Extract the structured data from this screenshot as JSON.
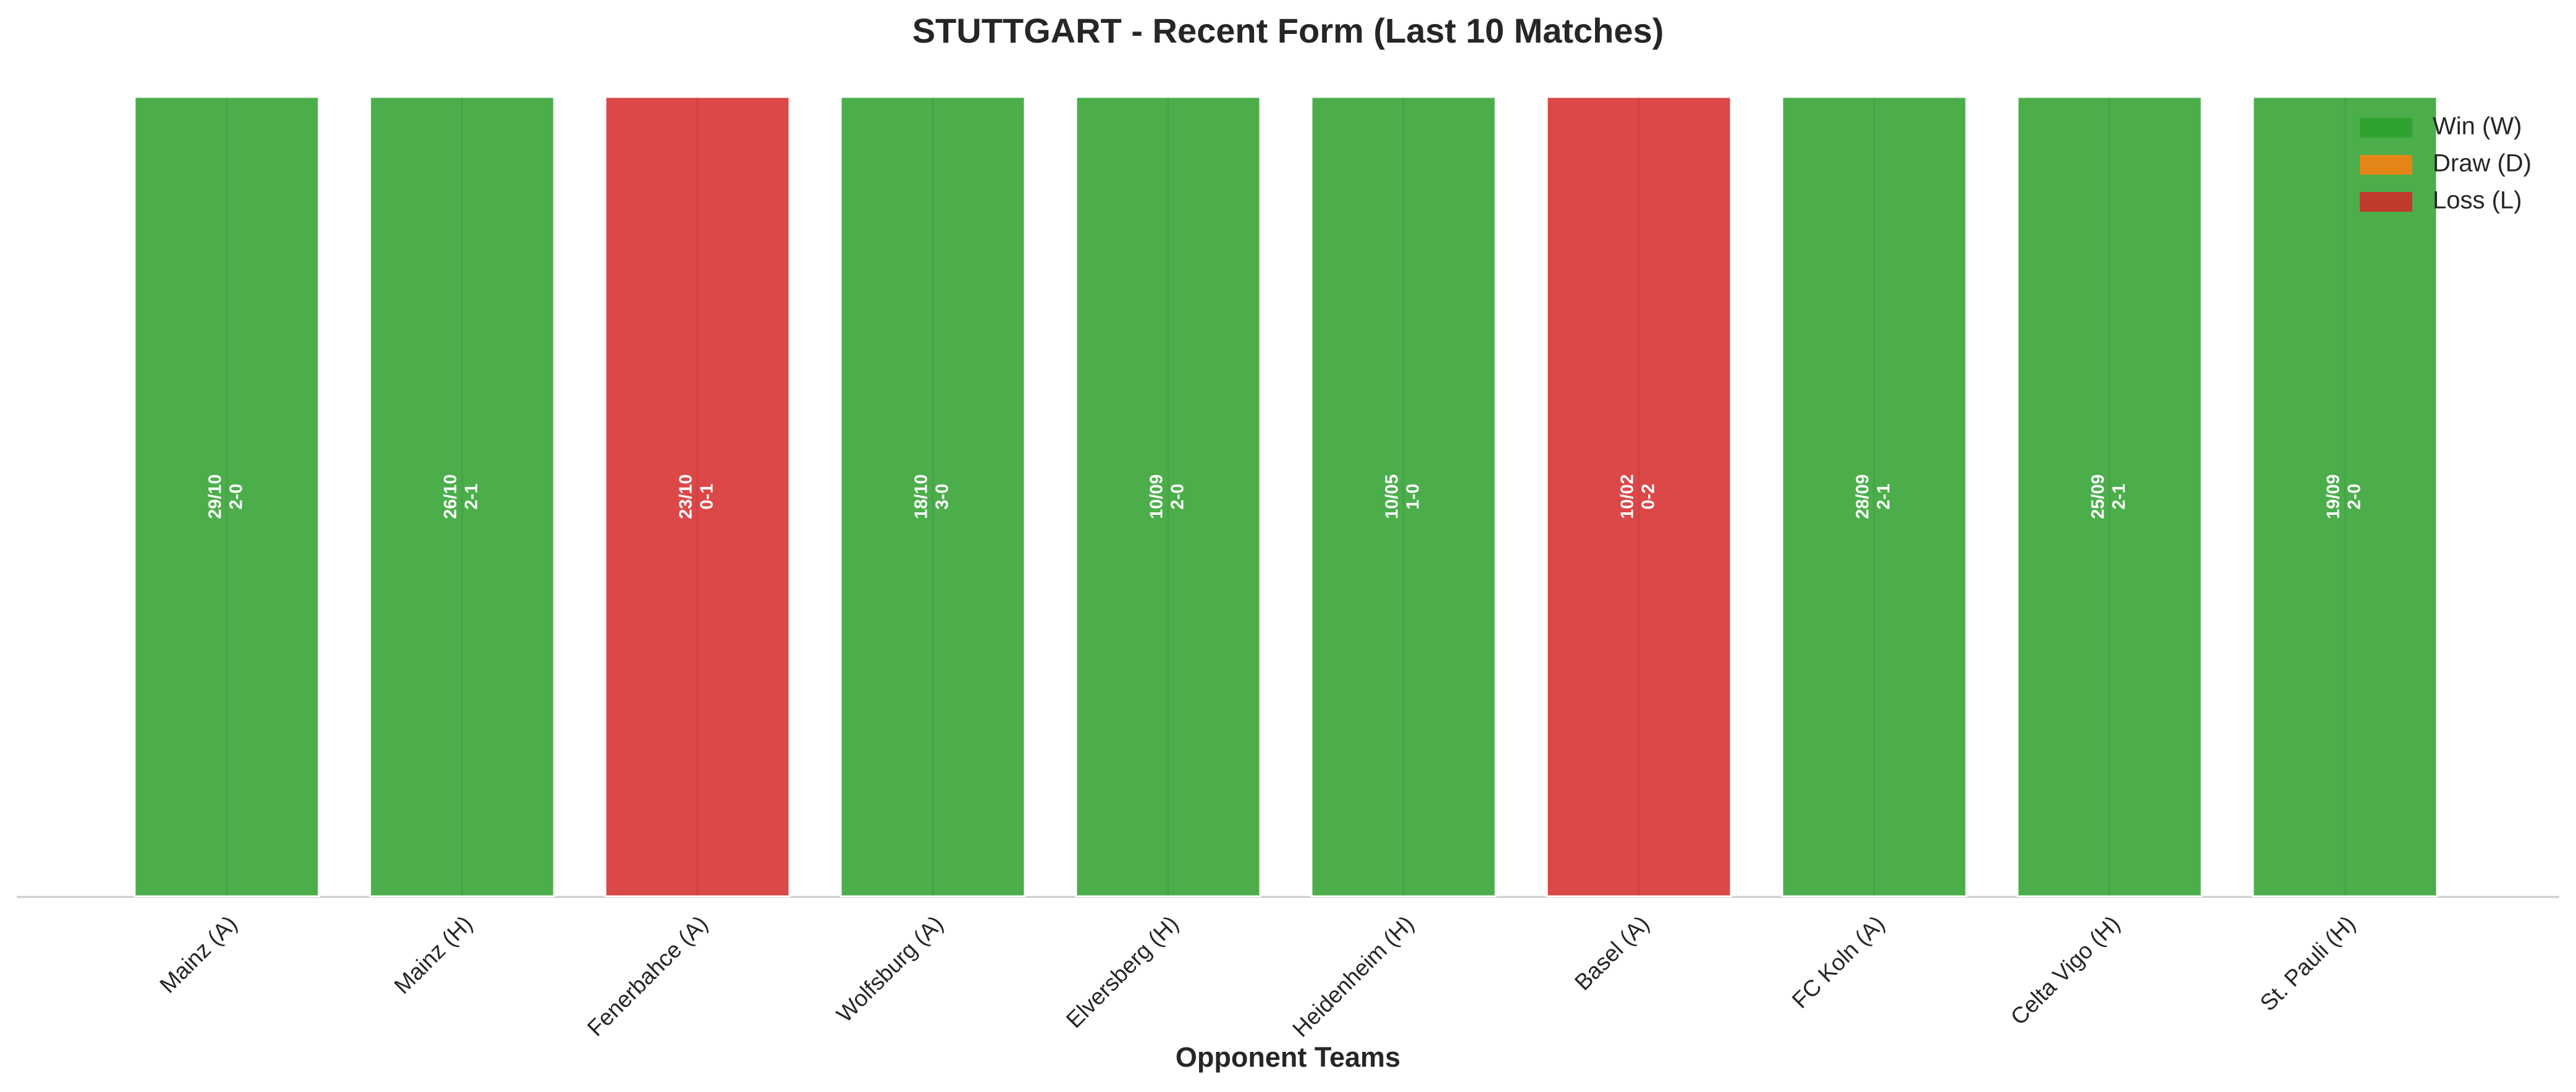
{
  "chart_data": {
    "type": "bar",
    "title": "STUTTGART - Recent Form (Last 10 Matches)",
    "x_label": "Opponent Teams",
    "categories": [
      "Mainz (A)",
      "Mainz (H)",
      "Fenerbahce (A)",
      "Wolfsburg (A)",
      "Elversberg (H)",
      "Heidenheim (H)",
      "Basel (A)",
      "FC Koln (A)",
      "Celta Vigo (H)",
      "St. Pauli (H)"
    ],
    "values": [
      1,
      1,
      1,
      1,
      1,
      1,
      1,
      1,
      1,
      1
    ],
    "ylim": [
      0,
      1
    ],
    "dates": [
      "29/10",
      "26/10",
      "23/10",
      "18/10",
      "10/09",
      "10/05",
      "10/02",
      "28/09",
      "25/09",
      "19/09"
    ],
    "scores": [
      "2-0",
      "2-1",
      "0-1",
      "3-0",
      "2-0",
      "1-0",
      "0-2",
      "2-1",
      "2-1",
      "2-0"
    ],
    "colors": [
      "#2ca02c",
      "#2ca02c",
      "#d62728",
      "#2ca02c",
      "#2ca02c",
      "#2ca02c",
      "#d62728",
      "#2ca02c",
      "#2ca02c",
      "#2ca02c"
    ],
    "legend_position": "upper right",
    "legend": [
      {
        "name": "Win (W)",
        "color": "#2ca02c"
      },
      {
        "name": "Draw (D)",
        "color": "#ff7f0e"
      },
      {
        "name": "Loss (L)",
        "color": "#d62728"
      }
    ]
  }
}
